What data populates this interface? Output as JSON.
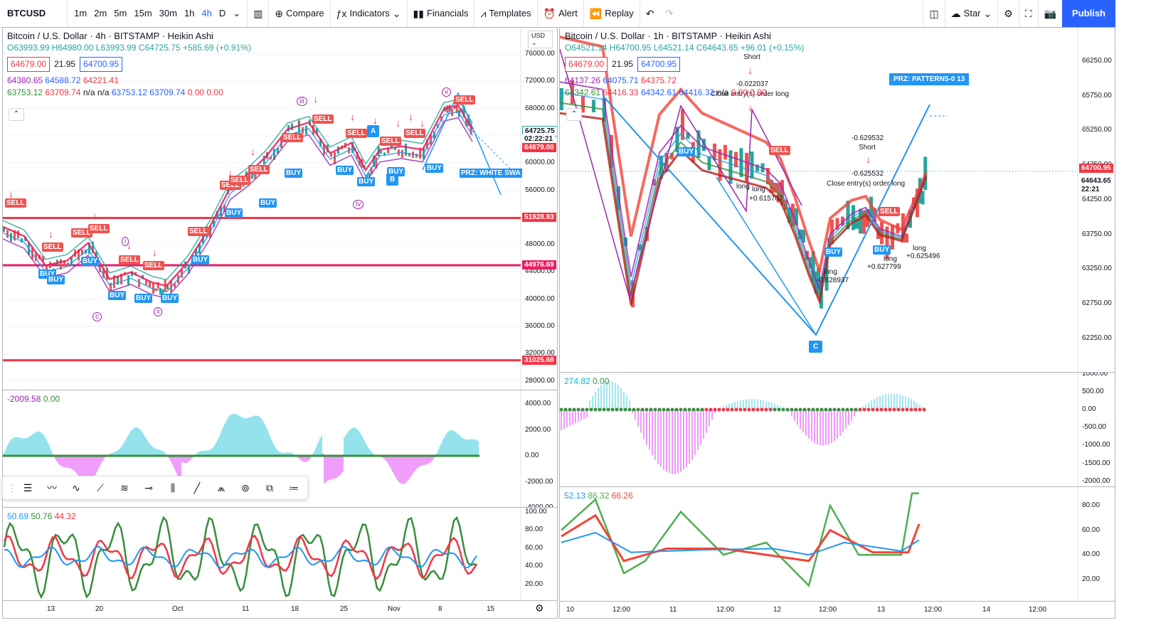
{
  "topbar": {
    "symbol": "BTCUSD",
    "timeframes": [
      "1m",
      "2m",
      "5m",
      "15m",
      "30m",
      "1h",
      "4h",
      "D"
    ],
    "active_tf": "4h",
    "compare": "Compare",
    "indicators": "Indicators",
    "financials": "Financials",
    "templates": "Templates",
    "alert": "Alert",
    "replay": "Replay",
    "star": "Star",
    "publish": "Publish"
  },
  "left": {
    "title": "Bitcoin / U.S. Dollar · 4h · BITSTAMP · Heikin Ashi",
    "ohlc": "O63993.99 H64980.00 L63993.99 C64725.75 +585.69 (+0.91%)",
    "bid": "64679.00",
    "spread": "21.95",
    "ask": "64700.95",
    "line3": [
      "64380.65",
      "64588.72",
      "64221.41"
    ],
    "line4": [
      "63753.12",
      "63709.74",
      "n/a",
      "n/a",
      "63753.12",
      "63709.74",
      "0.00",
      "0.00"
    ],
    "currency": "USD",
    "price_ticks": [
      "76000.00",
      "72000.00",
      "68000.00",
      "64000.00",
      "60000.00",
      "56000.00",
      "52000.00",
      "48000.00",
      "44000.00",
      "40000.00",
      "36000.00",
      "32000.00",
      "28000.00"
    ],
    "price_tags": {
      "last": "64725.75",
      "timer": "02:22:21",
      "bid": "64679.00",
      "r1": "51928.93",
      "r2": "44976.69",
      "r3": "31025.68"
    },
    "prz": "PRZ: WHITE SWA",
    "osc_legend": [
      "-2009.58",
      "0.00"
    ],
    "osc_ticks": [
      "4000.00",
      "2000.00",
      "0.00",
      "-2000.00",
      "-4000.00"
    ],
    "rsi_legend": [
      "50.69",
      "50.76",
      "44.32"
    ],
    "rsi_ticks": [
      "100.00",
      "80.00",
      "60.00",
      "40.00",
      "20.00"
    ],
    "time_ticks": [
      "13",
      "20",
      "Oct",
      "11",
      "18",
      "25",
      "Nov",
      "8",
      "15"
    ],
    "wave_labels": [
      "iii",
      "v",
      "i",
      "ii",
      "iv",
      "c",
      "A",
      "B"
    ],
    "signals": {
      "buy": "BUY",
      "sell": "SELL"
    }
  },
  "right": {
    "title": "Bitcoin / U.S. Dollar · 1h · BITSTAMP · Heikin Ashi",
    "ohlc": "O64521.14 H64700.95 L64521.14 C64643.65 +96.01 (+0.15%)",
    "bid": "64679.00",
    "spread": "21.95",
    "ask": "64700.95",
    "line3": [
      "64137.26",
      "64075.71",
      "64375.72"
    ],
    "line4": [
      "64342.61",
      "64416.33",
      "64342.61",
      "64416.33",
      "n/a",
      "0.00",
      "0.00"
    ],
    "price_ticks": [
      "66250.00",
      "65750.00",
      "65250.00",
      "64750.00",
      "64250.00",
      "63750.00",
      "63250.00",
      "62750.00",
      "62250.00"
    ],
    "price_tags": {
      "ask": "64700.95",
      "last": "64643.65",
      "timer": "22:21"
    },
    "prz": "PRZ: PATTERN5-0 13",
    "annotations": {
      "short1": "Short",
      "v1": "-0.022037",
      "close1": "Close entry(s) order long",
      "v2": "-0.629532",
      "short2": "Short",
      "v3": "-0.625532",
      "close2": "Close entry(s) order long",
      "long1": "long",
      "v4": "+0.615707",
      "long2": "long",
      "v5": "-0.628937",
      "long3": "long",
      "v6": "+0.627799",
      "long4": "long",
      "v7": "+0.625496",
      "c": "C"
    },
    "osc_legend": [
      "274.82",
      "0.00"
    ],
    "osc_ticks": [
      "1000.00",
      "500.00",
      "0.00",
      "-500.00",
      "-1000.00",
      "-1500.00",
      "-2000.00"
    ],
    "rsi_legend": [
      "52.13",
      "86.32",
      "66.26"
    ],
    "rsi_ticks": [
      "80.00",
      "60.00",
      "40.00",
      "20.00"
    ],
    "time_ticks": [
      "10",
      "12:00",
      "11",
      "12:00",
      "12",
      "12:00",
      "13",
      "12:00",
      "14",
      "12:00"
    ]
  },
  "colors": {
    "up": "#26a69a",
    "down": "#ef5350",
    "blue": "#2196f3",
    "red_line": "#f23645",
    "magenta": "#e040fb",
    "publish": "#2962ff"
  }
}
